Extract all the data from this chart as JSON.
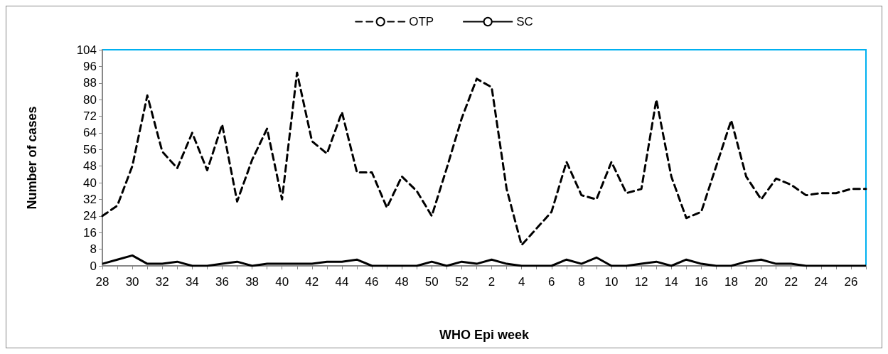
{
  "chart_data": {
    "type": "line",
    "xlabel": "WHO Epi week",
    "ylabel": "Number of cases",
    "categories": [
      "28",
      null,
      "30",
      null,
      "32",
      null,
      "34",
      null,
      "36",
      null,
      "38",
      null,
      "40",
      null,
      "42",
      null,
      "44",
      null,
      "46",
      null,
      "48",
      null,
      "50",
      null,
      "52",
      null,
      "2",
      null,
      "4",
      null,
      "6",
      null,
      "8",
      null,
      "10",
      null,
      "12",
      null,
      "14",
      null,
      "16",
      null,
      "18",
      null,
      "20",
      null,
      "22",
      null,
      "24",
      null,
      "26",
      null
    ],
    "series": [
      {
        "name": "OTP",
        "color": "#000000",
        "line_style": "dashed",
        "values": [
          24,
          29,
          48,
          82,
          55,
          47,
          64,
          46,
          68,
          31,
          51,
          66,
          32,
          93,
          60,
          54,
          74,
          45,
          45,
          28,
          43,
          36,
          24,
          47,
          71,
          90,
          86,
          37,
          10,
          18,
          26,
          50,
          34,
          32,
          50,
          35,
          37,
          80,
          43,
          23,
          26,
          48,
          70,
          43,
          32,
          42,
          39,
          34,
          35,
          35,
          37,
          37
        ]
      },
      {
        "name": "SC",
        "color": "#000000",
        "line_style": "solid",
        "values": [
          1,
          3,
          5,
          1,
          1,
          2,
          0,
          0,
          1,
          2,
          0,
          1,
          1,
          1,
          1,
          2,
          2,
          3,
          0,
          0,
          0,
          0,
          2,
          0,
          2,
          1,
          3,
          1,
          0,
          0,
          0,
          3,
          1,
          4,
          0,
          0,
          1,
          2,
          0,
          3,
          1,
          0,
          0,
          2,
          3,
          1,
          1,
          0,
          0,
          0,
          0,
          0
        ]
      }
    ],
    "ylim": [
      0,
      104
    ],
    "yticks": [
      0,
      8,
      16,
      24,
      32,
      40,
      48,
      56,
      64,
      72,
      80,
      88,
      96,
      104
    ],
    "grid": false,
    "legend": "top",
    "marker": "none"
  }
}
